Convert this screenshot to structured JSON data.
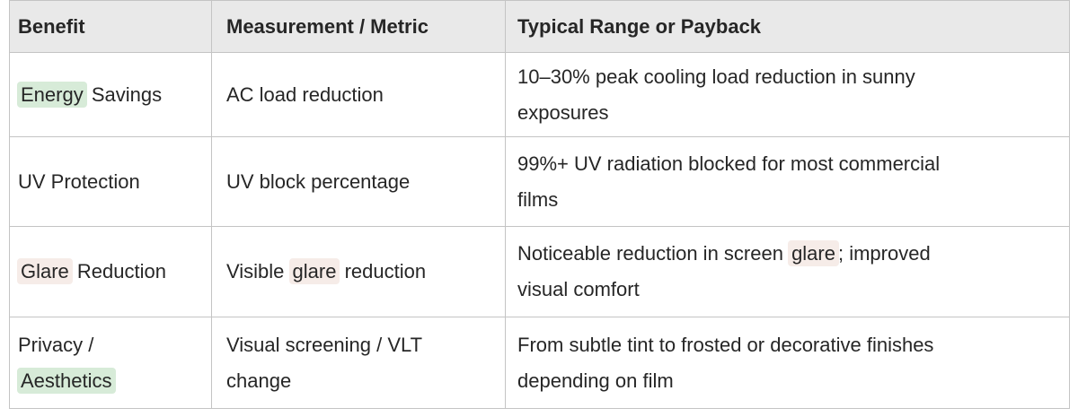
{
  "colors": {
    "border": "#c4c4c4",
    "header_bg": "#e9e9e9",
    "text": "#262626",
    "highlight_green": "#d7ebd8",
    "highlight_pink": "#f6ece8",
    "page_bg": "#ffffff"
  },
  "table": {
    "columns": [
      {
        "label": "Benefit"
      },
      {
        "label": "Measurement / Metric"
      },
      {
        "label": "Typical Range or Payback"
      }
    ],
    "rows": [
      {
        "cells": [
          [
            {
              "text": "Energy",
              "highlight": "green"
            },
            {
              "text": " Savings"
            }
          ],
          [
            {
              "text": "AC load reduction"
            }
          ],
          [
            {
              "text": "10–30% peak cooling load reduction in sunny exposures"
            }
          ]
        ]
      },
      {
        "cells": [
          [
            {
              "text": "UV Protection"
            }
          ],
          [
            {
              "text": "UV block percentage"
            }
          ],
          [
            {
              "text": "99%+ UV radiation blocked for most commercial films"
            }
          ]
        ]
      },
      {
        "cells": [
          [
            {
              "text": "Glare",
              "highlight": "pink"
            },
            {
              "text": " Reduction"
            }
          ],
          [
            {
              "text": "Visible "
            },
            {
              "text": "glare",
              "highlight": "pink"
            },
            {
              "text": " reduction"
            }
          ],
          [
            {
              "text": "Noticeable reduction in screen "
            },
            {
              "text": "glare",
              "highlight": "pink"
            },
            {
              "text": "; improved visual comfort"
            }
          ]
        ]
      },
      {
        "cells": [
          [
            {
              "text": "Privacy / "
            },
            {
              "text": "Aesthetics",
              "highlight": "green"
            }
          ],
          [
            {
              "text": "Visual screening / VLT change"
            }
          ],
          [
            {
              "text": "From subtle tint to frosted or decorative finishes depending on film"
            }
          ]
        ]
      }
    ]
  }
}
